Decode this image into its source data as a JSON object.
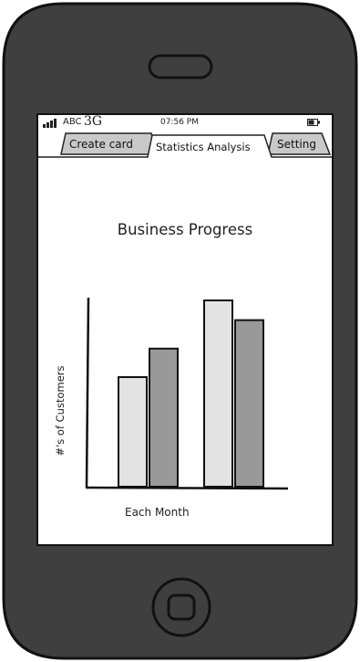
{
  "status_bar": {
    "carrier": "ABC",
    "network": "3G",
    "time": "07:56 PM"
  },
  "tabs": [
    {
      "label": "Create card",
      "active": false
    },
    {
      "label": "Statistics Analysis",
      "active": true
    },
    {
      "label": "Setting",
      "active": false
    }
  ],
  "colors": {
    "phone_body": "#3f3f3f",
    "bar_light": "#e3e3e3",
    "bar_dark": "#999999",
    "tab_inactive": "#c9c9c9"
  },
  "chart_data": {
    "type": "bar",
    "title": "Business Progress",
    "xlabel": "Each Month",
    "ylabel": "#'s of Customers",
    "categories": [
      "",
      ""
    ],
    "series": [
      {
        "values": [
          5,
          8.5
        ],
        "color": "#e3e3e3"
      },
      {
        "values": [
          6.3,
          7.6
        ],
        "color": "#999999"
      }
    ],
    "ylim": [
      0,
      10
    ],
    "grid": false
  }
}
